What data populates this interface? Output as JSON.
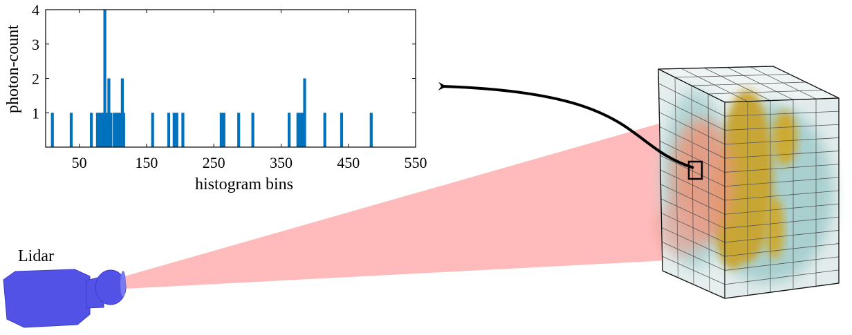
{
  "lidar": {
    "label": "Lidar",
    "color": "#5252e6"
  },
  "beam": {
    "color": "#ff9e9e"
  },
  "chart_data": {
    "type": "bar",
    "title": "",
    "xlabel": "histogram bins",
    "ylabel": "photon-count",
    "xlim": [
      0,
      550
    ],
    "ylim": [
      0,
      4
    ],
    "xticks": [
      50,
      150,
      250,
      350,
      450,
      550
    ],
    "yticks": [
      1,
      2,
      3,
      4
    ],
    "bar_color": "#0072bd",
    "grid": false,
    "x": [
      10,
      38,
      68,
      77,
      80,
      83,
      86,
      88,
      91,
      94,
      97,
      102,
      105,
      108,
      111,
      114,
      116,
      159,
      183,
      191,
      195,
      204,
      261,
      265,
      287,
      308,
      362,
      375,
      379,
      382,
      385,
      415,
      440,
      484
    ],
    "values": [
      1,
      1,
      1,
      1,
      1,
      1,
      1,
      4,
      1,
      2,
      1,
      1,
      1,
      1,
      1,
      2,
      1,
      1,
      1,
      1,
      1,
      1,
      1,
      1,
      1,
      1,
      1,
      1,
      1,
      1,
      2,
      1,
      1,
      1
    ]
  }
}
